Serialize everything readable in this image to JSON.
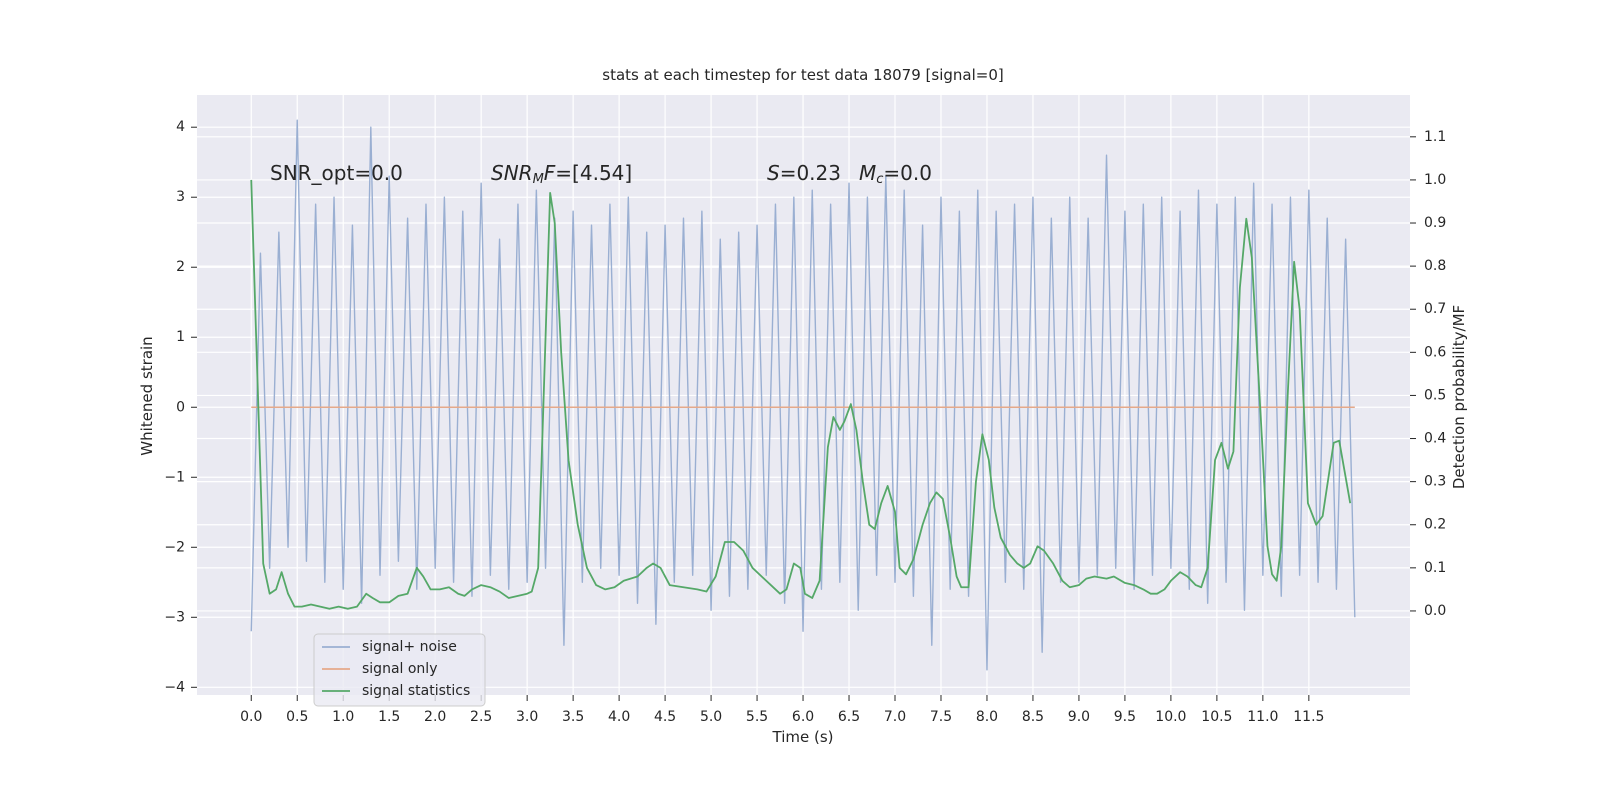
{
  "chart_data": {
    "type": "line",
    "title": "stats at each timestep for test data 18079 [signal=0]",
    "xlabel": "Time (s)",
    "ylabel": "Whitened strain",
    "y2label": "Detection probability/MF",
    "grid": true,
    "legend": "lower left",
    "annotations": [
      [
        "SNR_opt=0.0"
      ],
      [
        "SNR",
        "M",
        "F",
        "=[4.54]"
      ],
      [
        "S",
        "=0.23"
      ],
      [
        "M",
        "c",
        "=0.0"
      ]
    ],
    "xlim": [
      -0.59,
      12.6
    ],
    "ylim": [
      -4.11,
      4.46
    ],
    "y2lim": [
      -0.195,
      1.197
    ],
    "xticks": [
      {
        "value": 0,
        "label": "0.0"
      },
      {
        "value": 0.5,
        "label": "0.5"
      },
      {
        "value": 1,
        "label": "1.0"
      },
      {
        "value": 1.5,
        "label": "1.5"
      },
      {
        "value": 2,
        "label": "2.0"
      },
      {
        "value": 2.5,
        "label": "2.5"
      },
      {
        "value": 3,
        "label": "3.0"
      },
      {
        "value": 3.5,
        "label": "3.5"
      },
      {
        "value": 4,
        "label": "4.0"
      },
      {
        "value": 4.5,
        "label": "4.5"
      },
      {
        "value": 5,
        "label": "5.0"
      },
      {
        "value": 5.5,
        "label": "5.5"
      },
      {
        "value": 6,
        "label": "6.0"
      },
      {
        "value": 6.5,
        "label": "6.5"
      },
      {
        "value": 7,
        "label": "7.0"
      },
      {
        "value": 7.5,
        "label": "7.5"
      },
      {
        "value": 8,
        "label": "8.0"
      },
      {
        "value": 8.5,
        "label": "8.5"
      },
      {
        "value": 9,
        "label": "9.0"
      },
      {
        "value": 9.5,
        "label": "9.5"
      },
      {
        "value": 10,
        "label": "10.0"
      },
      {
        "value": 10.5,
        "label": "10.5"
      },
      {
        "value": 11,
        "label": "11.0"
      },
      {
        "value": 11.5,
        "label": "11.5"
      }
    ],
    "yticks": [
      {
        "value": -4,
        "label": "−4"
      },
      {
        "value": -3,
        "label": "−3"
      },
      {
        "value": -2,
        "label": "−2"
      },
      {
        "value": -1,
        "label": "−1"
      },
      0,
      1,
      2,
      3,
      4
    ],
    "y2ticks": [
      {
        "value": 0,
        "label": "0.0"
      },
      {
        "value": 0.1,
        "label": "0.1"
      },
      {
        "value": 0.2,
        "label": "0.2"
      },
      {
        "value": 0.3,
        "label": "0.3"
      },
      {
        "value": 0.4,
        "label": "0.4"
      },
      {
        "value": 0.5,
        "label": "0.5"
      },
      {
        "value": 0.6,
        "label": "0.6"
      },
      {
        "value": 0.7,
        "label": "0.7"
      },
      {
        "value": 0.8,
        "label": "0.8"
      },
      {
        "value": 0.9,
        "label": "0.9"
      },
      {
        "value": 1,
        "label": "1.0"
      },
      {
        "value": 1.1,
        "label": "1.1"
      }
    ],
    "series": [
      {
        "name": "signal+ noise",
        "color": "#9aafd2",
        "x": [
          0,
          0.1,
          0.2,
          0.3,
          0.4,
          0.5,
          0.6,
          0.7,
          0.8,
          0.9,
          1,
          1.1,
          1.2,
          1.3,
          1.4,
          1.5,
          1.6,
          1.7,
          1.8,
          1.9,
          2,
          2.1,
          2.2,
          2.3,
          2.4,
          2.5,
          2.6,
          2.7,
          2.8,
          2.9,
          3,
          3.1,
          3.2,
          3.3,
          3.4,
          3.5,
          3.6,
          3.7,
          3.8,
          3.9,
          4,
          4.1,
          4.2,
          4.3,
          4.4,
          4.5,
          4.6,
          4.7,
          4.8,
          4.9,
          5,
          5.1,
          5.2,
          5.3,
          5.4,
          5.5,
          5.6,
          5.7,
          5.8,
          5.9,
          6,
          6.1,
          6.2,
          6.3,
          6.4,
          6.5,
          6.6,
          6.7,
          6.8,
          6.9,
          7,
          7.1,
          7.2,
          7.3,
          7.4,
          7.5,
          7.6,
          7.7,
          7.8,
          7.9,
          8,
          8.1,
          8.2,
          8.3,
          8.4,
          8.5,
          8.6,
          8.7,
          8.8,
          8.9,
          9,
          9.1,
          9.2,
          9.3,
          9.4,
          9.5,
          9.6,
          9.7,
          9.8,
          9.9,
          10,
          10.1,
          10.2,
          10.3,
          10.4,
          10.5,
          10.6,
          10.7,
          10.8,
          10.9,
          11,
          11.1,
          11.2,
          11.3,
          11.4,
          11.5,
          11.6,
          11.7,
          11.8,
          11.9,
          12
        ],
        "values": [
          -3.2,
          2.2,
          -2.3,
          2.5,
          -2.0,
          4.1,
          -2.2,
          2.9,
          -2.5,
          3.0,
          -2.6,
          2.6,
          -2.8,
          4.0,
          -2.4,
          3.3,
          -2.2,
          2.7,
          -2.6,
          2.9,
          -2.3,
          3.0,
          -2.5,
          2.8,
          -2.7,
          3.2,
          -2.4,
          2.4,
          -2.6,
          2.9,
          -2.5,
          3.1,
          -2.3,
          2.7,
          -3.4,
          2.8,
          -2.5,
          2.6,
          -2.3,
          2.9,
          -2.4,
          3.0,
          -2.8,
          2.5,
          -3.1,
          2.6,
          -2.5,
          2.7,
          -2.4,
          2.8,
          -2.9,
          2.4,
          -2.7,
          2.5,
          -2.6,
          2.6,
          -2.4,
          2.9,
          -2.8,
          3.0,
          -3.2,
          3.1,
          -2.6,
          2.9,
          -2.5,
          3.2,
          -2.9,
          3.0,
          -2.4,
          3.3,
          -2.5,
          3.1,
          -2.7,
          2.6,
          -3.4,
          3.0,
          -2.6,
          2.8,
          -2.7,
          3.1,
          -3.75,
          2.8,
          -2.5,
          2.9,
          -2.6,
          3.0,
          -3.5,
          2.7,
          -2.5,
          3.0,
          -2.5,
          2.7,
          -2.4,
          3.6,
          -2.3,
          2.8,
          -2.6,
          2.9,
          -2.4,
          3.0,
          -2.3,
          2.8,
          -2.6,
          3.1,
          -2.8,
          2.9,
          -2.5,
          3.0,
          -2.9,
          3.2,
          -2.4,
          2.9,
          -2.7,
          3.0,
          -2.4,
          3.1,
          -2.5,
          2.7,
          -2.6,
          2.4,
          -3.0
        ]
      },
      {
        "name": "signal only",
        "color": "#e5a98a",
        "x": [
          0,
          12
        ],
        "values": [
          0,
          0
        ]
      },
      {
        "name": "signal statistics",
        "color": "#55a868",
        "axis": "y2",
        "x": [
          0,
          0.13,
          0.2,
          0.27,
          0.33,
          0.4,
          0.47,
          0.55,
          0.65,
          0.75,
          0.85,
          0.95,
          1.05,
          1.15,
          1.25,
          1.32,
          1.4,
          1.5,
          1.6,
          1.7,
          1.8,
          1.87,
          1.95,
          2.05,
          2.15,
          2.25,
          2.32,
          2.4,
          2.5,
          2.6,
          2.7,
          2.8,
          2.9,
          3,
          3.05,
          3.12,
          3.18,
          3.25,
          3.3,
          3.37,
          3.45,
          3.55,
          3.65,
          3.75,
          3.85,
          3.95,
          4.05,
          4.2,
          4.3,
          4.37,
          4.45,
          4.55,
          4.7,
          4.85,
          4.95,
          5.05,
          5.15,
          5.25,
          5.35,
          5.45,
          5.55,
          5.65,
          5.75,
          5.82,
          5.9,
          5.97,
          6.02,
          6.1,
          6.18,
          6.27,
          6.33,
          6.4,
          6.45,
          6.52,
          6.58,
          6.65,
          6.72,
          6.78,
          6.85,
          6.92,
          7,
          7.05,
          7.12,
          7.2,
          7.3,
          7.38,
          7.45,
          7.52,
          7.6,
          7.67,
          7.72,
          7.8,
          7.88,
          7.95,
          8.02,
          8.08,
          8.15,
          8.25,
          8.33,
          8.4,
          8.47,
          8.55,
          8.62,
          8.72,
          8.82,
          8.9,
          9,
          9.08,
          9.17,
          9.3,
          9.38,
          9.5,
          9.6,
          9.7,
          9.78,
          9.85,
          9.93,
          10,
          10.1,
          10.18,
          10.27,
          10.33,
          10.4,
          10.48,
          10.55,
          10.62,
          10.68,
          10.75,
          10.82,
          10.88,
          10.99,
          11.05,
          11.1,
          11.15,
          11.2,
          11.27,
          11.34,
          11.4,
          11.49,
          11.58,
          11.65,
          11.77,
          11.83,
          11.95
        ],
        "values": [
          1.0,
          0.11,
          0.04,
          0.05,
          0.09,
          0.04,
          0.01,
          0.01,
          0.015,
          0.01,
          0.005,
          0.01,
          0.005,
          0.01,
          0.04,
          0.03,
          0.02,
          0.02,
          0.035,
          0.04,
          0.1,
          0.08,
          0.05,
          0.05,
          0.055,
          0.04,
          0.035,
          0.05,
          0.06,
          0.055,
          0.045,
          0.03,
          0.035,
          0.04,
          0.045,
          0.1,
          0.5,
          0.97,
          0.9,
          0.6,
          0.35,
          0.2,
          0.1,
          0.06,
          0.05,
          0.055,
          0.07,
          0.08,
          0.1,
          0.11,
          0.1,
          0.06,
          0.055,
          0.05,
          0.045,
          0.08,
          0.16,
          0.16,
          0.14,
          0.1,
          0.08,
          0.06,
          0.04,
          0.05,
          0.11,
          0.1,
          0.04,
          0.03,
          0.07,
          0.38,
          0.45,
          0.42,
          0.44,
          0.48,
          0.42,
          0.3,
          0.2,
          0.19,
          0.25,
          0.29,
          0.23,
          0.1,
          0.085,
          0.12,
          0.2,
          0.25,
          0.275,
          0.26,
          0.17,
          0.08,
          0.055,
          0.055,
          0.3,
          0.41,
          0.35,
          0.24,
          0.17,
          0.13,
          0.11,
          0.1,
          0.11,
          0.15,
          0.14,
          0.11,
          0.07,
          0.055,
          0.06,
          0.075,
          0.08,
          0.075,
          0.08,
          0.065,
          0.06,
          0.05,
          0.04,
          0.04,
          0.05,
          0.07,
          0.09,
          0.08,
          0.06,
          0.055,
          0.1,
          0.35,
          0.39,
          0.33,
          0.37,
          0.75,
          0.91,
          0.82,
          0.4,
          0.15,
          0.085,
          0.07,
          0.15,
          0.5,
          0.81,
          0.7,
          0.25,
          0.2,
          0.22,
          0.39,
          0.395,
          0.25
        ]
      }
    ]
  }
}
